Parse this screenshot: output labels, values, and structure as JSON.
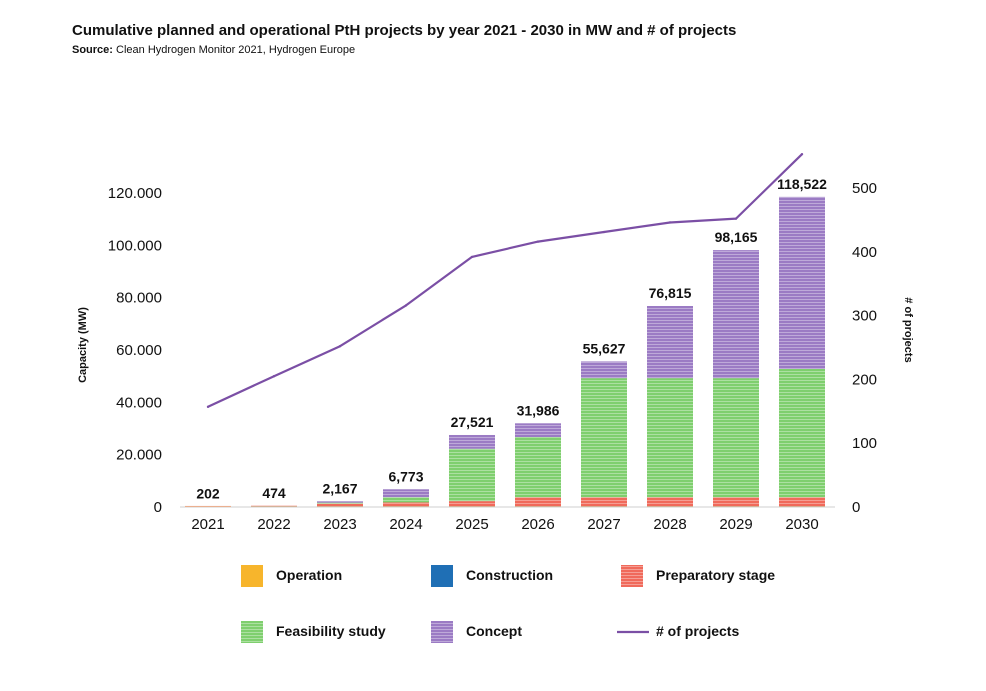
{
  "header": {
    "title": "Cumulative planned and operational PtH projects by year 2021 - 2030 in MW and # of projects",
    "source_label": "Source:",
    "source_text": " Clean Hydrogen Monitor 2021, Hydrogen Europe"
  },
  "chart_data": {
    "type": "bar",
    "stacked": true,
    "categories": [
      "2021",
      "2022",
      "2023",
      "2024",
      "2025",
      "2026",
      "2027",
      "2028",
      "2029",
      "2030"
    ],
    "series": [
      {
        "name": "Operation",
        "color": "#f7b52c",
        "values": [
          150,
          150,
          150,
          150,
          150,
          150,
          150,
          150,
          150,
          150
        ]
      },
      {
        "name": "Construction",
        "color": "#1f6fb5",
        "values": [
          20,
          100,
          100,
          100,
          100,
          100,
          100,
          100,
          100,
          100
        ]
      },
      {
        "name": "Preparatory stage",
        "color": "#f06a5b",
        "values": [
          32,
          224,
          1000,
          1500,
          2000,
          3500,
          3500,
          3500,
          3500,
          3500
        ]
      },
      {
        "name": "Feasibility study",
        "color": "#7fcf6e",
        "values": [
          0,
          0,
          400,
          2000,
          20000,
          23000,
          45500,
          45500,
          45500,
          49000
        ]
      },
      {
        "name": "Concept",
        "color": "#9b7bc4",
        "values": [
          0,
          0,
          517,
          3023,
          5271,
          5236,
          6377,
          27565,
          48915,
          65772
        ]
      }
    ],
    "totals": [
      "202",
      "474",
      "2,167",
      "6,773",
      "27,521",
      "31,986",
      "55,627",
      "76,815",
      "98,165",
      "118,522"
    ],
    "total_values": [
      202,
      474,
      2167,
      6773,
      27521,
      31986,
      55627,
      76815,
      98165,
      118522
    ],
    "line": {
      "name": "# of projects",
      "color": "#7b4fa5",
      "values": [
        157,
        205,
        252,
        316,
        392,
        416,
        431,
        446,
        452,
        553
      ]
    },
    "ylabel": "Capacity (MW)",
    "y2label": "# of projects",
    "ylim": [
      0,
      120000
    ],
    "y2lim": [
      0,
      500
    ],
    "y_ticks": [
      "0",
      "20.000",
      "40.000",
      "60.000",
      "80.000",
      "100.000",
      "120.000"
    ],
    "y2_ticks": [
      "0",
      "100",
      "200",
      "300",
      "400",
      "500"
    ],
    "legend_position": "bottom",
    "grid": false
  }
}
